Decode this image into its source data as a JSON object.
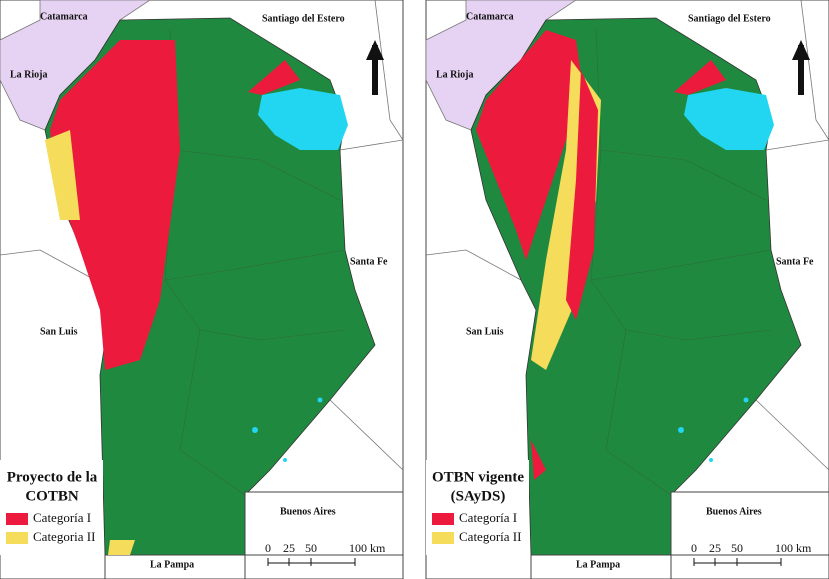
{
  "panels": [
    {
      "title_lines": [
        "Proyecto de la",
        "COTBN"
      ],
      "legend": [
        {
          "label": "Categoría I",
          "color": "#ec1a3c"
        },
        {
          "label": "Categoria II",
          "color": "#f5dc5a"
        }
      ],
      "places": [
        "Catamarca",
        "Santiago del Estero",
        "La Rioja",
        "Santa Fe",
        "San Luis",
        "Buenos Aires",
        "La Pampa"
      ],
      "scale_labels": [
        "0",
        "25",
        "50",
        "100 km"
      ]
    },
    {
      "title_lines": [
        "OTBN vigente",
        "(SAyDS)"
      ],
      "legend": [
        {
          "label": "Categoría I",
          "color": "#ec1a3c"
        },
        {
          "label": "Categoría II",
          "color": "#f5dc5a"
        }
      ],
      "places": [
        "Catamarca",
        "Santiago del Estero",
        "La Rioja",
        "Santa Fe",
        "San Luis",
        "Buenos Aires",
        "La Pampa"
      ],
      "scale_labels": [
        "0",
        "25",
        "50",
        "100 km"
      ]
    }
  ]
}
